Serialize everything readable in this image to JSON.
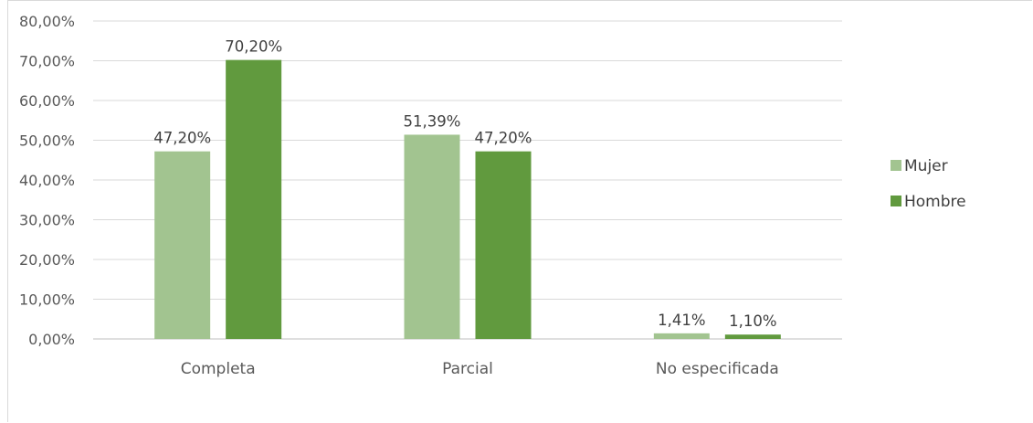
{
  "chart_data": {
    "type": "bar",
    "categories": [
      "Completa",
      "Parcial",
      "No especificada"
    ],
    "series": [
      {
        "name": "Mujer",
        "values": [
          47.2,
          51.39,
          1.41
        ],
        "labels": [
          "47,20%",
          "51,39%",
          "1,41%"
        ],
        "color": "#a2c490"
      },
      {
        "name": "Hombre",
        "values": [
          70.2,
          47.2,
          1.1
        ],
        "labels": [
          "70,20%",
          "47,20%",
          "1,10%"
        ],
        "color": "#619a3e"
      }
    ],
    "ylim": [
      0,
      80
    ],
    "y_ticks": [
      0,
      10,
      20,
      30,
      40,
      50,
      60,
      70,
      80
    ],
    "y_tick_labels": [
      "0,00%",
      "10,00%",
      "20,00%",
      "30,00%",
      "40,00%",
      "50,00%",
      "60,00%",
      "70,00%",
      "80,00%"
    ],
    "title": "",
    "xlabel": "",
    "ylabel": "",
    "grid": true,
    "legend_position": "right"
  }
}
